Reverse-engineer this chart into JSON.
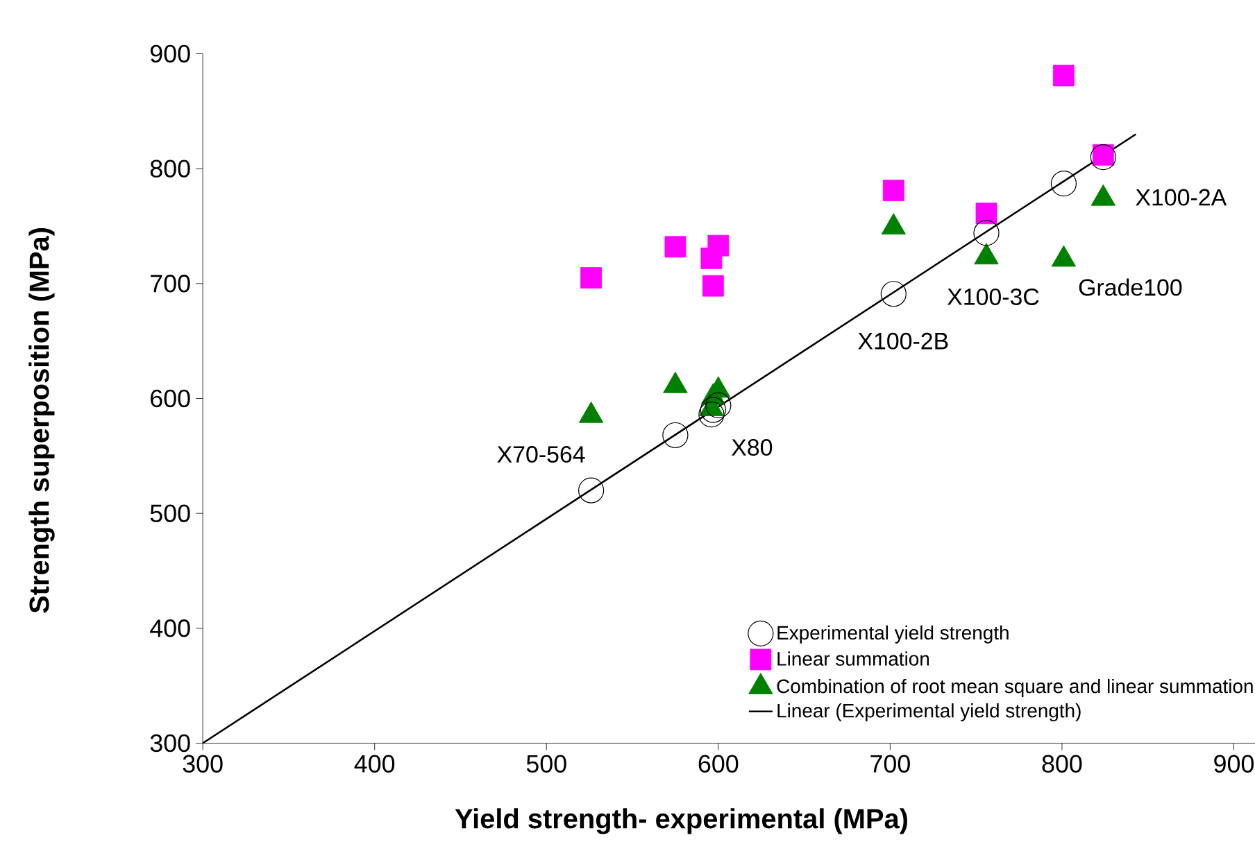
{
  "chart_data": {
    "type": "scatter",
    "xlabel": "Yield strength- experimental (MPa)",
    "ylabel": "Strength superposition (MPa)",
    "xlim": [
      300,
      935
    ],
    "ylim": [
      300,
      900
    ],
    "xticks": [
      300,
      400,
      500,
      600,
      700,
      800,
      900
    ],
    "yticks": [
      300,
      400,
      500,
      600,
      700,
      800,
      900
    ],
    "legend": "bottom right",
    "series": [
      {
        "name": "Experimental yield strength",
        "color": "#000000",
        "marker": "circle",
        "x": [
          526,
          575,
          596,
          597,
          600,
          702,
          756,
          801,
          824
        ],
        "values": [
          520,
          568,
          586,
          590,
          594,
          691,
          744,
          787,
          810
        ]
      },
      {
        "name": "Linear summation",
        "color": "#ff00ff",
        "marker": "square",
        "x": [
          526,
          575,
          596,
          597,
          600,
          702,
          756,
          801,
          824
        ],
        "values": [
          705,
          732,
          722,
          698,
          733,
          781,
          761,
          881,
          812
        ]
      },
      {
        "name": "Combination of root mean square and linear summation",
        "color": "#008000",
        "marker": "triangle",
        "x": [
          526,
          575,
          596,
          597,
          600,
          702,
          756,
          801,
          824
        ],
        "values": [
          585,
          611,
          591,
          601,
          607,
          749,
          723,
          721,
          774
        ]
      },
      {
        "name": "Linear (Experimental yield strength)",
        "type": "line",
        "color": "#000000",
        "marker": "none",
        "x": [
          300,
          843
        ],
        "values": [
          300,
          830
        ]
      }
    ],
    "annotations": [
      {
        "text": "X70-564",
        "x": 526,
        "y": 520
      },
      {
        "text": "X80",
        "x": 597,
        "y": 590
      },
      {
        "text": "X100-2B",
        "x": 702,
        "y": 691
      },
      {
        "text": "X100-3C",
        "x": 756,
        "y": 744
      },
      {
        "text": "Grade100",
        "x": 801,
        "y": 721
      },
      {
        "text": "X100-2A",
        "x": 824,
        "y": 810
      }
    ]
  }
}
